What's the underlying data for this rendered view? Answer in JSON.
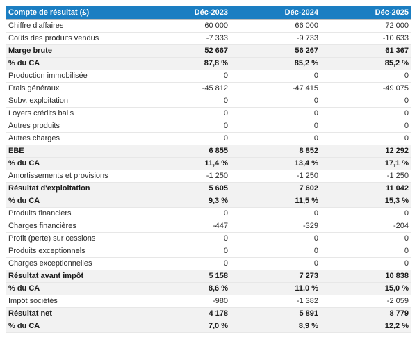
{
  "colors": {
    "header_bg": "#1b7ec2",
    "header_text": "#ffffff",
    "total_row_bg": "#f2f2f2",
    "row_border": "#e7e7e7",
    "text": "#2b2b2b"
  },
  "table": {
    "columns": [
      "Compte de résultat (£)",
      "Déc-2023",
      "Déc-2024",
      "Déc-2025"
    ],
    "rows": [
      {
        "label": "Chiffre d'affaires",
        "values": [
          "60 000",
          "66 000",
          "72 000"
        ],
        "total": false
      },
      {
        "label": "Coûts des produits vendus",
        "values": [
          "-7 333",
          "-9 733",
          "-10 633"
        ],
        "total": false
      },
      {
        "label": "Marge brute",
        "values": [
          "52 667",
          "56 267",
          "61 367"
        ],
        "total": true
      },
      {
        "label": "% du CA",
        "values": [
          "87,8 %",
          "85,2 %",
          "85,2 %"
        ],
        "total": true
      },
      {
        "label": "Production immobilisée",
        "values": [
          "0",
          "0",
          "0"
        ],
        "total": false
      },
      {
        "label": "Frais généraux",
        "values": [
          "-45 812",
          "-47 415",
          "-49 075"
        ],
        "total": false
      },
      {
        "label": "Subv. exploitation",
        "values": [
          "0",
          "0",
          "0"
        ],
        "total": false
      },
      {
        "label": "Loyers crédits bails",
        "values": [
          "0",
          "0",
          "0"
        ],
        "total": false
      },
      {
        "label": "Autres produits",
        "values": [
          "0",
          "0",
          "0"
        ],
        "total": false
      },
      {
        "label": "Autres charges",
        "values": [
          "0",
          "0",
          "0"
        ],
        "total": false
      },
      {
        "label": "EBE",
        "values": [
          "6 855",
          "8 852",
          "12 292"
        ],
        "total": true
      },
      {
        "label": "% du CA",
        "values": [
          "11,4 %",
          "13,4 %",
          "17,1 %"
        ],
        "total": true
      },
      {
        "label": "Amortissements et provisions",
        "values": [
          "-1 250",
          "-1 250",
          "-1 250"
        ],
        "total": false
      },
      {
        "label": "Résultat d'exploitation",
        "values": [
          "5 605",
          "7 602",
          "11 042"
        ],
        "total": true
      },
      {
        "label": "% du CA",
        "values": [
          "9,3 %",
          "11,5 %",
          "15,3 %"
        ],
        "total": true
      },
      {
        "label": "Produits financiers",
        "values": [
          "0",
          "0",
          "0"
        ],
        "total": false
      },
      {
        "label": "Charges financières",
        "values": [
          "-447",
          "-329",
          "-204"
        ],
        "total": false
      },
      {
        "label": "Profit (perte) sur cessions",
        "values": [
          "0",
          "0",
          "0"
        ],
        "total": false
      },
      {
        "label": "Produits exceptionnels",
        "values": [
          "0",
          "0",
          "0"
        ],
        "total": false
      },
      {
        "label": "Charges exceptionnelles",
        "values": [
          "0",
          "0",
          "0"
        ],
        "total": false
      },
      {
        "label": "Résultat avant impôt",
        "values": [
          "5 158",
          "7 273",
          "10 838"
        ],
        "total": true
      },
      {
        "label": "% du CA",
        "values": [
          "8,6 %",
          "11,0 %",
          "15,0 %"
        ],
        "total": true
      },
      {
        "label": "Impôt sociétés",
        "values": [
          "-980",
          "-1 382",
          "-2 059"
        ],
        "total": false
      },
      {
        "label": "Résultat net",
        "values": [
          "4 178",
          "5 891",
          "8 779"
        ],
        "total": true
      },
      {
        "label": "% du CA",
        "values": [
          "7,0 %",
          "8,9 %",
          "12,2 %"
        ],
        "total": true
      }
    ]
  }
}
